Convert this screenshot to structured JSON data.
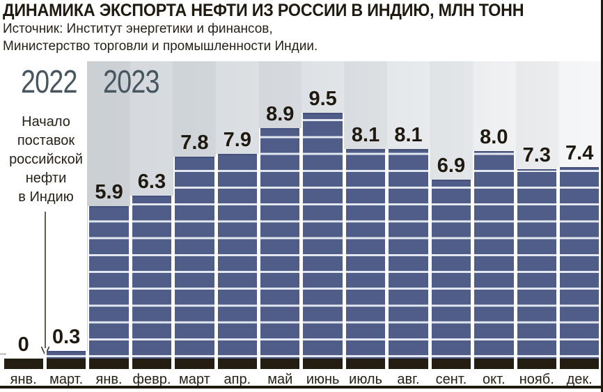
{
  "header": {
    "title": "ДИНАМИКА ЭКСПОРТА НЕФТИ ИЗ РОССИИ В ИНДИЮ, МЛН ТОНН",
    "source_line1": "Источник: Институт энергетики и финансов,",
    "source_line2": "Министерство торговли и промышленности Индии."
  },
  "annotation": {
    "text": "Начало поставок российской нефти в Индию",
    "lines": [
      "Начало",
      "поставок",
      "российской",
      "нефти",
      "в Индию"
    ]
  },
  "chart_data": {
    "type": "bar",
    "title": "ДИНАМИКА ЭКСПОРТА НЕФТИ ИЗ РОССИИ В ИНДИЮ, МЛН ТОНН",
    "unit": "млн тонн",
    "ylim": [
      0,
      9.5
    ],
    "grid": false,
    "legend_position": "none",
    "groups": [
      {
        "year": "2022",
        "points": [
          {
            "month": "янв.",
            "value": 0,
            "label": "0"
          },
          {
            "month": "март.",
            "value": 0.3,
            "label": "0.3"
          }
        ]
      },
      {
        "year": "2023",
        "points": [
          {
            "month": "янв.",
            "value": 5.9,
            "label": "5.9"
          },
          {
            "month": "февр.",
            "value": 6.3,
            "label": "6.3"
          },
          {
            "month": "март",
            "value": 7.8,
            "label": "7.8"
          },
          {
            "month": "апр.",
            "value": 7.9,
            "label": "7.9"
          },
          {
            "month": "май",
            "value": 8.9,
            "label": "8.9"
          },
          {
            "month": "июнь",
            "value": 9.5,
            "label": "9.5"
          },
          {
            "month": "июль",
            "value": 8.1,
            "label": "8.1"
          },
          {
            "month": "авг.",
            "value": 8.1,
            "label": "8.1"
          },
          {
            "month": "сент.",
            "value": 6.9,
            "label": "6.9"
          },
          {
            "month": "окт.",
            "value": 8.0,
            "label": "8.0"
          },
          {
            "month": "нояб.",
            "value": 7.3,
            "label": "7.3"
          },
          {
            "month": "дек.",
            "value": 7.4,
            "label": "7.4"
          }
        ]
      }
    ]
  },
  "colors": {
    "bar": "#505d88",
    "bar_stripe": "#e2e7f0",
    "bar_top_edge": "#45517b",
    "bar_base": "#241d12",
    "bg_left": "#d0d5d9",
    "bg_right": "#f6f7f8",
    "year_label": "#47565f",
    "text": "#261f15",
    "axis": "#1f1910"
  }
}
